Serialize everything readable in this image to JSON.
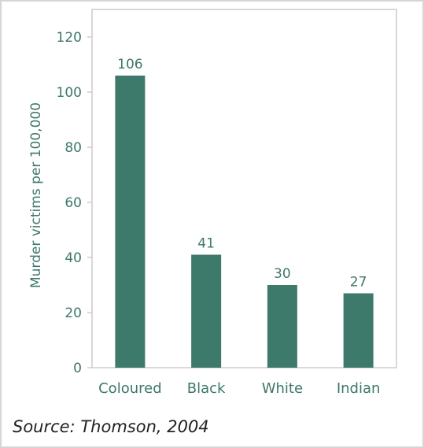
{
  "chart_data": {
    "type": "bar",
    "categories": [
      "Coloured",
      "Black",
      "White",
      "Indian"
    ],
    "values": [
      106,
      41,
      30,
      27
    ],
    "data_labels": [
      "106",
      "41",
      "30",
      "27"
    ],
    "ylabel": "Murder victims per 100,000",
    "xlabel": "",
    "ylim": [
      0,
      130
    ],
    "yticks": [
      0,
      20,
      40,
      60,
      80,
      100,
      120
    ],
    "grid": false,
    "bar_color": "#3e7a6c",
    "text_color": "#3d776a",
    "frame_color": "#cccccc"
  },
  "source": "Source: Thomson, 2004"
}
